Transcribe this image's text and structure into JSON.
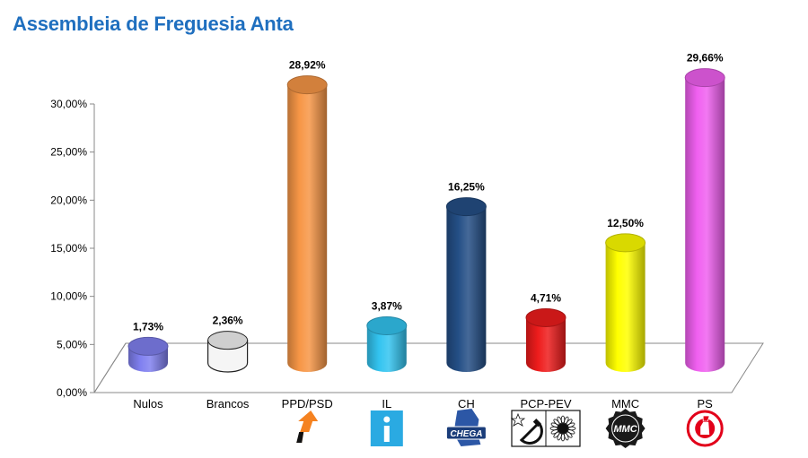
{
  "title": "Assembleia de Freguesia Anta",
  "colors": {
    "title": "#1f6fbf"
  },
  "chart_data": {
    "type": "bar",
    "style": "3d-cylinder",
    "categories": [
      "Nulos",
      "Brancos",
      "PPD/PSD",
      "IL",
      "CH",
      "PCP-PEV",
      "MMC",
      "PS"
    ],
    "values": [
      1.73,
      2.36,
      28.92,
      3.87,
      16.25,
      4.71,
      12.5,
      29.66
    ],
    "value_labels": [
      "1,73%",
      "2,36%",
      "28,92%",
      "3,87%",
      "16,25%",
      "4,71%",
      "12,50%",
      "29,66%"
    ],
    "bar_colors": [
      "#8080f0",
      "#f2f2f2",
      "#f79646",
      "#33c4f0",
      "#244f86",
      "#ee1c1c",
      "#ffff00",
      "#f060f0"
    ],
    "logos": [
      "",
      "",
      "ppd-psd-logo",
      "il-logo",
      "chega-logo",
      "pcp-pev-logo",
      "mmc-logo",
      "ps-logo"
    ],
    "logo_text": {
      "CH": "CHEGA",
      "MMC": "MMC"
    },
    "ylim": [
      0,
      30
    ],
    "yticks": [
      0,
      5,
      10,
      15,
      20,
      25,
      30
    ],
    "ytick_labels": [
      "0,00%",
      "5,00%",
      "10,00%",
      "15,00%",
      "20,00%",
      "25,00%",
      "30,00%"
    ],
    "grid": false,
    "legend": "none",
    "xlabel": "",
    "ylabel": ""
  }
}
